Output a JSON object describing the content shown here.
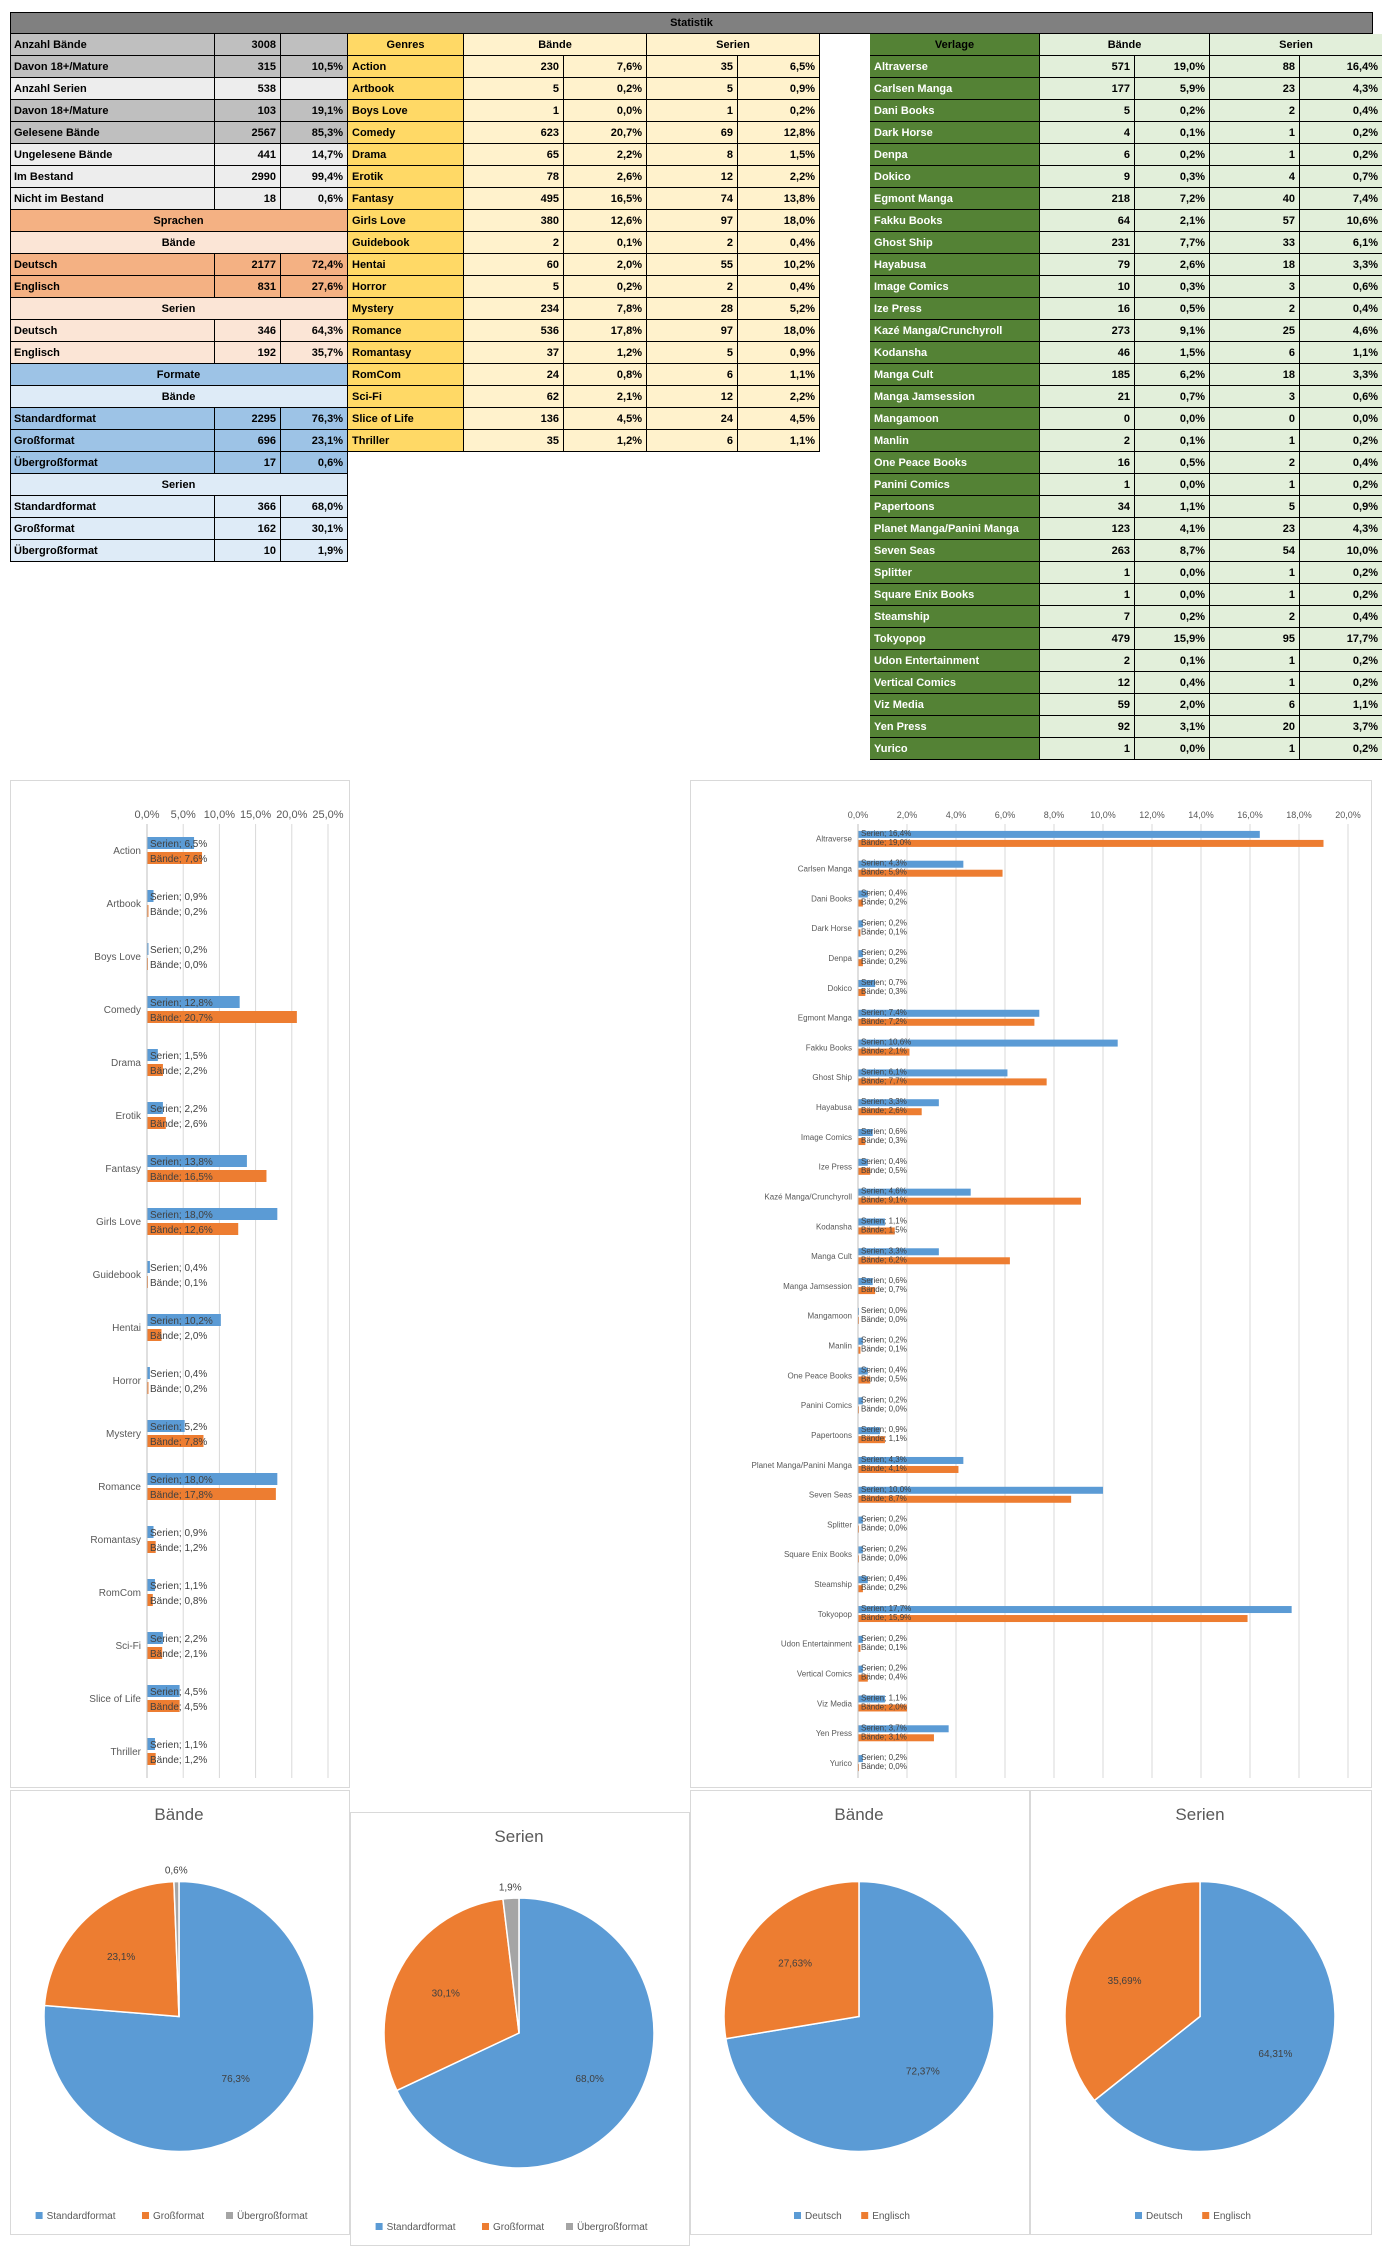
{
  "sheet": {
    "title": "Statistik",
    "stats": [
      {
        "label": "Anzahl Bände",
        "value": "3008",
        "pct": ""
      },
      {
        "label": "Davon 18+/Mature",
        "value": "315",
        "pct": "10,5%"
      },
      {
        "label": "Anzahl Serien",
        "value": "538",
        "pct": ""
      },
      {
        "label": "Davon 18+/Mature",
        "value": "103",
        "pct": "19,1%"
      },
      {
        "label": "Gelesene Bände",
        "value": "2567",
        "pct": "85,3%"
      },
      {
        "label": "Ungelesene Bände",
        "value": "441",
        "pct": "14,7%"
      },
      {
        "label": "Im Bestand",
        "value": "2990",
        "pct": "99,4%"
      },
      {
        "label": "Nicht im Bestand",
        "value": "18",
        "pct": "0,6%"
      }
    ],
    "sprachen_header": "Sprachen",
    "sprachen_baende_header": "Bände",
    "sprachen_baende": [
      {
        "label": "Deutsch",
        "value": "2177",
        "pct": "72,4%"
      },
      {
        "label": "Englisch",
        "value": "831",
        "pct": "27,6%"
      }
    ],
    "sprachen_serien_header": "Serien",
    "sprachen_serien": [
      {
        "label": "Deutsch",
        "value": "346",
        "pct": "64,3%"
      },
      {
        "label": "Englisch",
        "value": "192",
        "pct": "35,7%"
      }
    ],
    "formate_header": "Formate",
    "formate_baende_header": "Bände",
    "formate_baende": [
      {
        "label": "Standardformat",
        "value": "2295",
        "pct": "76,3%"
      },
      {
        "label": "Großformat",
        "value": "696",
        "pct": "23,1%"
      },
      {
        "label": "Übergroßformat",
        "value": "17",
        "pct": "0,6%"
      }
    ],
    "formate_serien_header": "Serien",
    "formate_serien": [
      {
        "label": "Standardformat",
        "value": "366",
        "pct": "68,0%"
      },
      {
        "label": "Großformat",
        "value": "162",
        "pct": "30,1%"
      },
      {
        "label": "Übergroßformat",
        "value": "10",
        "pct": "1,9%"
      }
    ],
    "genres_headers": {
      "name": "Genres",
      "baende": "Bände",
      "serien": "Serien"
    },
    "genres": [
      {
        "name": "Action",
        "bv": "230",
        "bp": "7,6%",
        "sv": "35",
        "sp": "6,5%"
      },
      {
        "name": "Artbook",
        "bv": "5",
        "bp": "0,2%",
        "sv": "5",
        "sp": "0,9%"
      },
      {
        "name": "Boys Love",
        "bv": "1",
        "bp": "0,0%",
        "sv": "1",
        "sp": "0,2%"
      },
      {
        "name": "Comedy",
        "bv": "623",
        "bp": "20,7%",
        "sv": "69",
        "sp": "12,8%"
      },
      {
        "name": "Drama",
        "bv": "65",
        "bp": "2,2%",
        "sv": "8",
        "sp": "1,5%"
      },
      {
        "name": "Erotik",
        "bv": "78",
        "bp": "2,6%",
        "sv": "12",
        "sp": "2,2%"
      },
      {
        "name": "Fantasy",
        "bv": "495",
        "bp": "16,5%",
        "sv": "74",
        "sp": "13,8%"
      },
      {
        "name": "Girls Love",
        "bv": "380",
        "bp": "12,6%",
        "sv": "97",
        "sp": "18,0%"
      },
      {
        "name": "Guidebook",
        "bv": "2",
        "bp": "0,1%",
        "sv": "2",
        "sp": "0,4%"
      },
      {
        "name": "Hentai",
        "bv": "60",
        "bp": "2,0%",
        "sv": "55",
        "sp": "10,2%"
      },
      {
        "name": "Horror",
        "bv": "5",
        "bp": "0,2%",
        "sv": "2",
        "sp": "0,4%"
      },
      {
        "name": "Mystery",
        "bv": "234",
        "bp": "7,8%",
        "sv": "28",
        "sp": "5,2%"
      },
      {
        "name": "Romance",
        "bv": "536",
        "bp": "17,8%",
        "sv": "97",
        "sp": "18,0%"
      },
      {
        "name": "Romantasy",
        "bv": "37",
        "bp": "1,2%",
        "sv": "5",
        "sp": "0,9%"
      },
      {
        "name": "RomCom",
        "bv": "24",
        "bp": "0,8%",
        "sv": "6",
        "sp": "1,1%"
      },
      {
        "name": "Sci-Fi",
        "bv": "62",
        "bp": "2,1%",
        "sv": "12",
        "sp": "2,2%"
      },
      {
        "name": "Slice of Life",
        "bv": "136",
        "bp": "4,5%",
        "sv": "24",
        "sp": "4,5%"
      },
      {
        "name": "Thriller",
        "bv": "35",
        "bp": "1,2%",
        "sv": "6",
        "sp": "1,1%"
      }
    ],
    "verlage_headers": {
      "name": "Verlage",
      "baende": "Bände",
      "serien": "Serien"
    },
    "verlage": [
      {
        "name": "Altraverse",
        "bv": "571",
        "bp": "19,0%",
        "sv": "88",
        "sp": "16,4%"
      },
      {
        "name": "Carlsen Manga",
        "bv": "177",
        "bp": "5,9%",
        "sv": "23",
        "sp": "4,3%"
      },
      {
        "name": "Dani Books",
        "bv": "5",
        "bp": "0,2%",
        "sv": "2",
        "sp": "0,4%"
      },
      {
        "name": "Dark Horse",
        "bv": "4",
        "bp": "0,1%",
        "sv": "1",
        "sp": "0,2%"
      },
      {
        "name": "Denpa",
        "bv": "6",
        "bp": "0,2%",
        "sv": "1",
        "sp": "0,2%"
      },
      {
        "name": "Dokico",
        "bv": "9",
        "bp": "0,3%",
        "sv": "4",
        "sp": "0,7%"
      },
      {
        "name": "Egmont Manga",
        "bv": "218",
        "bp": "7,2%",
        "sv": "40",
        "sp": "7,4%"
      },
      {
        "name": "Fakku Books",
        "bv": "64",
        "bp": "2,1%",
        "sv": "57",
        "sp": "10,6%"
      },
      {
        "name": "Ghost Ship",
        "bv": "231",
        "bp": "7,7%",
        "sv": "33",
        "sp": "6,1%"
      },
      {
        "name": "Hayabusa",
        "bv": "79",
        "bp": "2,6%",
        "sv": "18",
        "sp": "3,3%"
      },
      {
        "name": "Image Comics",
        "bv": "10",
        "bp": "0,3%",
        "sv": "3",
        "sp": "0,6%"
      },
      {
        "name": "Ize Press",
        "bv": "16",
        "bp": "0,5%",
        "sv": "2",
        "sp": "0,4%"
      },
      {
        "name": "Kazé Manga/Crunchyroll",
        "bv": "273",
        "bp": "9,1%",
        "sv": "25",
        "sp": "4,6%"
      },
      {
        "name": "Kodansha",
        "bv": "46",
        "bp": "1,5%",
        "sv": "6",
        "sp": "1,1%"
      },
      {
        "name": "Manga Cult",
        "bv": "185",
        "bp": "6,2%",
        "sv": "18",
        "sp": "3,3%"
      },
      {
        "name": "Manga Jamsession",
        "bv": "21",
        "bp": "0,7%",
        "sv": "3",
        "sp": "0,6%"
      },
      {
        "name": "Mangamoon",
        "bv": "0",
        "bp": "0,0%",
        "sv": "0",
        "sp": "0,0%"
      },
      {
        "name": "Manlin",
        "bv": "2",
        "bp": "0,1%",
        "sv": "1",
        "sp": "0,2%"
      },
      {
        "name": "One Peace Books",
        "bv": "16",
        "bp": "0,5%",
        "sv": "2",
        "sp": "0,4%"
      },
      {
        "name": "Panini Comics",
        "bv": "1",
        "bp": "0,0%",
        "sv": "1",
        "sp": "0,2%"
      },
      {
        "name": "Papertoons",
        "bv": "34",
        "bp": "1,1%",
        "sv": "5",
        "sp": "0,9%"
      },
      {
        "name": "Planet Manga/Panini Manga",
        "bv": "123",
        "bp": "4,1%",
        "sv": "23",
        "sp": "4,3%"
      },
      {
        "name": "Seven Seas",
        "bv": "263",
        "bp": "8,7%",
        "sv": "54",
        "sp": "10,0%"
      },
      {
        "name": "Splitter",
        "bv": "1",
        "bp": "0,0%",
        "sv": "1",
        "sp": "0,2%"
      },
      {
        "name": "Square Enix Books",
        "bv": "1",
        "bp": "0,0%",
        "sv": "1",
        "sp": "0,2%"
      },
      {
        "name": "Steamship",
        "bv": "7",
        "bp": "0,2%",
        "sv": "2",
        "sp": "0,4%"
      },
      {
        "name": "Tokyopop",
        "bv": "479",
        "bp": "15,9%",
        "sv": "95",
        "sp": "17,7%"
      },
      {
        "name": "Udon Entertainment",
        "bv": "2",
        "bp": "0,1%",
        "sv": "1",
        "sp": "0,2%"
      },
      {
        "name": "Vertical Comics",
        "bv": "12",
        "bp": "0,4%",
        "sv": "1",
        "sp": "0,2%"
      },
      {
        "name": "Viz Media",
        "bv": "59",
        "bp": "2,0%",
        "sv": "6",
        "sp": "1,1%"
      },
      {
        "name": "Yen Press",
        "bv": "92",
        "bp": "3,1%",
        "sv": "20",
        "sp": "3,7%"
      },
      {
        "name": "Yurico",
        "bv": "1",
        "bp": "0,0%",
        "sv": "1",
        "sp": "0,2%"
      }
    ]
  },
  "colors": {
    "header_bg": "#808080",
    "serien_blue": "#5b9bd5",
    "baende_orange": "#ed7d31",
    "grey_slice": "#a5a5a5",
    "genre_yellow": "#ffd966",
    "genre_light": "#fff2cc",
    "verlag_green": "#548235",
    "verlag_light": "#e2efda",
    "sprachen_dark": "#f4b183",
    "sprachen_light": "#fbe5d6",
    "formate_dark": "#9dc3e6",
    "formate_light": "#deebf7",
    "stats_grey": "#bfbfbf",
    "stats_light": "#ededed"
  },
  "chart_data": [
    {
      "type": "bar",
      "orientation": "horizontal",
      "categories": [
        "Action",
        "Artbook",
        "Boys Love",
        "Comedy",
        "Drama",
        "Erotik",
        "Fantasy",
        "Girls Love",
        "Guidebook",
        "Hentai",
        "Horror",
        "Mystery",
        "Romance",
        "Romantasy",
        "RomCom",
        "Sci-Fi",
        "Slice of Life",
        "Thriller"
      ],
      "series": [
        {
          "name": "Serien",
          "values": [
            6.5,
            0.9,
            0.2,
            12.8,
            1.5,
            2.2,
            13.8,
            18.0,
            0.4,
            10.2,
            0.4,
            5.2,
            18.0,
            0.9,
            1.1,
            2.2,
            4.5,
            1.1
          ],
          "labels": [
            "6,5%",
            "0,9%",
            "0,2%",
            "12,8%",
            "1,5%",
            "2,2%",
            "13,8%",
            "18,0%",
            "0,4%",
            "10,2%",
            "0,4%",
            "5,2%",
            "18,0%",
            "0,9%",
            "1,1%",
            "2,2%",
            "4,5%",
            "1,1%"
          ]
        },
        {
          "name": "Bände",
          "values": [
            7.6,
            0.2,
            0.0,
            20.7,
            2.2,
            2.6,
            16.5,
            12.6,
            0.1,
            2.0,
            0.2,
            7.8,
            17.8,
            1.2,
            0.8,
            2.1,
            4.5,
            1.2
          ],
          "labels": [
            "7,6%",
            "0,2%",
            "0,0%",
            "20,7%",
            "2,2%",
            "2,6%",
            "16,5%",
            "12,6%",
            "0,1%",
            "2,0%",
            "0,2%",
            "7,8%",
            "17,8%",
            "1,2%",
            "0,8%",
            "2,1%",
            "4,5%",
            "1,2%"
          ]
        }
      ],
      "xlim": [
        0,
        25
      ],
      "xticks": [
        "0,0%",
        "5,0%",
        "10,0%",
        "15,0%",
        "20,0%",
        "25,0%"
      ],
      "grid": true
    },
    {
      "type": "bar",
      "orientation": "horizontal",
      "categories": [
        "Altraverse",
        "Carlsen Manga",
        "Dani Books",
        "Dark Horse",
        "Denpa",
        "Dokico",
        "Egmont Manga",
        "Fakku Books",
        "Ghost Ship",
        "Hayabusa",
        "Image Comics",
        "Ize Press",
        "Kazé Manga/Crunchyroll",
        "Kodansha",
        "Manga Cult",
        "Manga Jamsession",
        "Mangamoon",
        "Manlin",
        "One Peace Books",
        "Panini Comics",
        "Papertoons",
        "Planet Manga/Panini Manga",
        "Seven Seas",
        "Splitter",
        "Square Enix Books",
        "Steamship",
        "Tokyopop",
        "Udon Entertainment",
        "Vertical Comics",
        "Viz Media",
        "Yen Press",
        "Yurico"
      ],
      "series": [
        {
          "name": "Serien",
          "values": [
            16.4,
            4.3,
            0.4,
            0.2,
            0.2,
            0.7,
            7.4,
            10.6,
            6.1,
            3.3,
            0.6,
            0.4,
            4.6,
            1.1,
            3.3,
            0.6,
            0.0,
            0.2,
            0.4,
            0.2,
            0.9,
            4.3,
            10.0,
            0.2,
            0.2,
            0.4,
            17.7,
            0.2,
            0.2,
            1.1,
            3.7,
            0.2
          ],
          "labels": [
            "16,4%",
            "4,3%",
            "0,4%",
            "0,2%",
            "0,2%",
            "0,7%",
            "7,4%",
            "10,6%",
            "6,1%",
            "3,3%",
            "0,6%",
            "0,4%",
            "4,6%",
            "1,1%",
            "3,3%",
            "0,6%",
            "0,0%",
            "0,2%",
            "0,4%",
            "0,2%",
            "0,9%",
            "4,3%",
            "10,0%",
            "0,2%",
            "0,2%",
            "0,4%",
            "17,7%",
            "0,2%",
            "0,2%",
            "1,1%",
            "3,7%",
            "0,2%"
          ]
        },
        {
          "name": "Bände",
          "values": [
            19.0,
            5.9,
            0.2,
            0.1,
            0.2,
            0.3,
            7.2,
            2.1,
            7.7,
            2.6,
            0.3,
            0.5,
            9.1,
            1.5,
            6.2,
            0.7,
            0.0,
            0.1,
            0.5,
            0.0,
            1.1,
            4.1,
            8.7,
            0.0,
            0.0,
            0.2,
            15.9,
            0.1,
            0.4,
            2.0,
            3.1,
            0.0
          ],
          "labels": [
            "19,0%",
            "5,9%",
            "0,2%",
            "0,1%",
            "0,2%",
            "0,3%",
            "7,2%",
            "2,1%",
            "7,7%",
            "2,6%",
            "0,3%",
            "0,5%",
            "9,1%",
            "1,5%",
            "6,2%",
            "0,7%",
            "0,0%",
            "0,1%",
            "0,5%",
            "0,0%",
            "1,1%",
            "4,1%",
            "8,7%",
            "0,0%",
            "0,0%",
            "0,2%",
            "15,9%",
            "0,1%",
            "0,4%",
            "2,0%",
            "3,1%",
            "0,0%"
          ]
        }
      ],
      "xlim": [
        0,
        20
      ],
      "xticks": [
        "0,0%",
        "2,0%",
        "4,0%",
        "6,0%",
        "8,0%",
        "10,0%",
        "12,0%",
        "14,0%",
        "16,0%",
        "18,0%",
        "20,0%"
      ],
      "grid": true
    },
    {
      "type": "pie",
      "title": "Bände",
      "labels": [
        "Standardformat",
        "Großformat",
        "Übergroßformat"
      ],
      "values": [
        76.3,
        23.1,
        0.6
      ],
      "value_labels": [
        "76,3%",
        "23,1%",
        "0,6%"
      ],
      "colors": [
        "#5b9bd5",
        "#ed7d31",
        "#a5a5a5"
      ],
      "legend": "bottom"
    },
    {
      "type": "pie",
      "title": "Serien",
      "labels": [
        "Standardformat",
        "Großformat",
        "Übergroßformat"
      ],
      "values": [
        68.0,
        30.1,
        1.9
      ],
      "value_labels": [
        "68,0%",
        "30,1%",
        "1,9%"
      ],
      "colors": [
        "#5b9bd5",
        "#ed7d31",
        "#a5a5a5"
      ],
      "legend": "bottom"
    },
    {
      "type": "pie",
      "title": "Bände",
      "labels": [
        "Deutsch",
        "Englisch"
      ],
      "values": [
        72.37,
        27.63
      ],
      "value_labels": [
        "72,37%",
        "27,63%"
      ],
      "colors": [
        "#5b9bd5",
        "#ed7d31"
      ],
      "legend": "bottom"
    },
    {
      "type": "pie",
      "title": "Serien",
      "labels": [
        "Deutsch",
        "Englisch"
      ],
      "values": [
        64.31,
        35.69
      ],
      "value_labels": [
        "64,31%",
        "35,69%"
      ],
      "colors": [
        "#5b9bd5",
        "#ed7d31"
      ],
      "legend": "bottom"
    }
  ]
}
